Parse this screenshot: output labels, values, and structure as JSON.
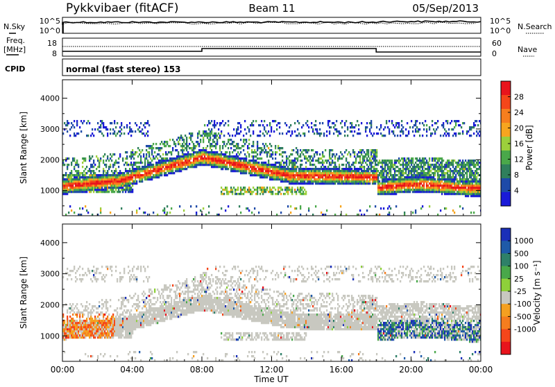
{
  "header": {
    "station": "Pykkvibaer (fitACF)",
    "beam": "Beam 11",
    "date": "05/Sep/2013"
  },
  "panels": {
    "nsky": {
      "label": "N.Sky",
      "ticks": [
        "10^5",
        "10^0"
      ],
      "right_ticks": [
        "10^5",
        "10^0"
      ],
      "right_label": "N.Search"
    },
    "freq": {
      "label_line1": "Freq.",
      "label_line2": "[MHz]",
      "ticks": [
        "18",
        "8"
      ],
      "right_ticks": [
        "60",
        "0"
      ],
      "right_label": "Nave"
    },
    "cpid": {
      "label": "CPID",
      "value": "normal (fast stereo) 153"
    }
  },
  "chart_data": [
    {
      "type": "heatmap",
      "name": "Power",
      "ylabel": "Slant Range [km]",
      "xlabel": "Time UT",
      "colorbar_label": "Power [dB]",
      "x_ticks": [
        "00:00",
        "04:00",
        "08:00",
        "12:00",
        "16:00",
        "20:00",
        "00:00"
      ],
      "x_range_hours": [
        0,
        24
      ],
      "ylim": [
        180,
        4600
      ],
      "y_ticks": [
        1000,
        2000,
        3000,
        4000
      ],
      "colorbar_ticks": [
        "28",
        "24",
        "20",
        "16",
        "12",
        "8",
        "4"
      ],
      "colorbar_colors": [
        "#e8141c",
        "#f5461a",
        "#f67e1e",
        "#f7a51f",
        "#9ccf3c",
        "#4aa84a",
        "#2f7f5c",
        "#1e4aa8",
        "#1a1ad8"
      ],
      "colorbar_range": [
        0,
        32
      ]
    },
    {
      "type": "heatmap",
      "name": "Velocity",
      "ylabel": "Slant Range [km]",
      "xlabel": "Time UT",
      "colorbar_label": "Velocity [m s⁻¹]",
      "x_ticks": [
        "00:00",
        "04:00",
        "08:00",
        "12:00",
        "16:00",
        "20:00",
        "00:00"
      ],
      "x_range_hours": [
        0,
        24
      ],
      "ylim": [
        180,
        4600
      ],
      "y_ticks": [
        1000,
        2000,
        3000,
        4000
      ],
      "colorbar_ticks": [
        "1000",
        "500",
        "100",
        "25",
        "-25",
        "-100",
        "-500",
        "-1000"
      ],
      "colorbar_colors": [
        "#1a2fb8",
        "#1e5aa8",
        "#2e8068",
        "#49a84a",
        "#8ed03a",
        "#c8c8c0",
        "#f5a020",
        "#f57d1e",
        "#f5461a",
        "#e8141c"
      ]
    }
  ]
}
